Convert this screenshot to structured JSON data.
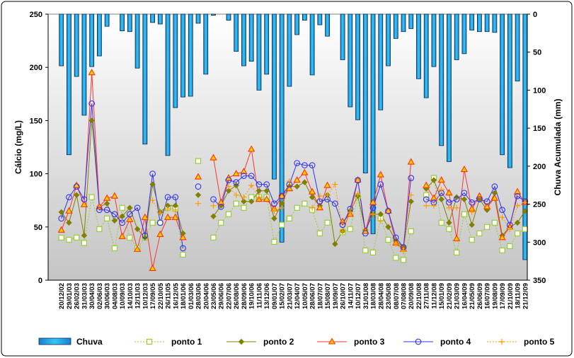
{
  "chart_data": {
    "type": "bar+line",
    "title": "",
    "ylabel": "Cálcio (mg/L)",
    "y2label": "Chuva Acumulada (mm)",
    "ylim": [
      0,
      250
    ],
    "y2lim": [
      350,
      0
    ],
    "yticks": [
      "0",
      "50",
      "100",
      "150",
      "200",
      "250"
    ],
    "y2ticks": [
      "0",
      "50",
      "100",
      "150",
      "200",
      "250",
      "300",
      "350"
    ],
    "legend_position": "bottom",
    "categories": [
      "20/12/02",
      "29/01/03",
      "26/02/03",
      "31/03/03",
      "30/04/03",
      "02/06/03",
      "30/06/03",
      "04/08/03",
      "10/09/03",
      "14/10/03",
      "12/11/03",
      "10/12/03",
      "17/09/05",
      "22/10/05",
      "26/11/05",
      "16/12/05",
      "18/01/06",
      "01/03/06",
      "28/03/06",
      "20/04/06",
      "23/05/06",
      "29/06/06",
      "22/07/06",
      "26/08/06",
      "28/09/06",
      "19/10/06",
      "11/11/06",
      "13/12/06",
      "09/01/07",
      "15/02/07",
      "21/03/07",
      "12/04/07",
      "10/05/07",
      "28/06/07",
      "18/07/07",
      "15/08/07",
      "19/09/07",
      "26/10/07",
      "14/11/07",
      "10/12/07",
      "31/01/08",
      "18/03/08",
      "28/04/08",
      "23/05/08",
      "08/07/08",
      "07/08/08",
      "20/09/08",
      "22/10/08",
      "27/11/08",
      "11/12/08",
      "15/01/09",
      "21/02/09",
      "21/03/09",
      "16/04/09",
      "21/05/09",
      "26/06/09",
      "16/07/09",
      "19/08/09",
      "17/09/09",
      "21/10/09",
      "18/11/09",
      "21/12/09"
    ],
    "rain": {
      "name": "Chuva",
      "axis": "right",
      "values": [
        68,
        185,
        82,
        133,
        69,
        55,
        16,
        0,
        22,
        23,
        71,
        171,
        11,
        13,
        186,
        123,
        109,
        108,
        12,
        79,
        1.5,
        0,
        8,
        49,
        68,
        62,
        100,
        79,
        217,
        300,
        95,
        27,
        8,
        80,
        14,
        29,
        0,
        60,
        122,
        139,
        209,
        289,
        126,
        68,
        32,
        23,
        19,
        85,
        110,
        69,
        173,
        194,
        60,
        52,
        21,
        23,
        23,
        24,
        185,
        202,
        88,
        323
      ]
    },
    "series": [
      {
        "name": "ponto 1",
        "color": "#99CC33",
        "marker": "square-open",
        "dash": true,
        "values": [
          40,
          38,
          40,
          35,
          78,
          48,
          58,
          30,
          68,
          40,
          30,
          40,
          54,
          54,
          68,
          67,
          24,
          null,
          112,
          null,
          40,
          54,
          62,
          72,
          68,
          78,
          78,
          78,
          36,
          52,
          58,
          68,
          72,
          66,
          44,
          54,
          null,
          45,
          48,
          79,
          28,
          26,
          58,
          38,
          21,
          19,
          46,
          null,
          80,
          96,
          54,
          48,
          26,
          62,
          38,
          44,
          50,
          54,
          28,
          32,
          44,
          48
        ]
      },
      {
        "name": "ponto 2",
        "color": "#808000",
        "marker": "diamond",
        "dash": false,
        "values": [
          64,
          54,
          80,
          42,
          150,
          69,
          72,
          56,
          60,
          68,
          48,
          40,
          90,
          64,
          70,
          70,
          44,
          null,
          80,
          null,
          60,
          70,
          84,
          89,
          74,
          74,
          84,
          84,
          58,
          72,
          88,
          88,
          92,
          78,
          70,
          80,
          34,
          46,
          65,
          79,
          47,
          62,
          62,
          50,
          37,
          31,
          74,
          null,
          86,
          94,
          76,
          54,
          78,
          76,
          52,
          76,
          66,
          82,
          42,
          50,
          54,
          65
        ]
      },
      {
        "name": "ponto 3",
        "color": "#FF3333",
        "marker": "triangle",
        "dash": false,
        "values": [
          47,
          65,
          89,
          71,
          195,
          69,
          77,
          79,
          41,
          57,
          29,
          59,
          11,
          43,
          59,
          59,
          40,
          null,
          97,
          null,
          115,
          73,
          96,
          100,
          102,
          123,
          76,
          76,
          67,
          79,
          86,
          94,
          101,
          83,
          68,
          89,
          null,
          55,
          62,
          94,
          46,
          73,
          99,
          65,
          35,
          29,
          111,
          null,
          89,
          77,
          94,
          82,
          39,
          104,
          67,
          79,
          69,
          77,
          40,
          50,
          83,
          73
        ]
      },
      {
        "name": "ponto 4",
        "color": "#3333EE",
        "marker": "circle-open",
        "dash": false,
        "values": [
          58,
          78,
          88,
          76,
          166,
          66,
          66,
          62,
          54,
          62,
          68,
          42,
          100,
          54,
          78,
          78,
          30,
          null,
          88,
          null,
          76,
          69,
          94,
          92,
          98,
          98,
          90,
          90,
          72,
          79,
          90,
          110,
          108,
          108,
          74,
          76,
          72,
          52,
          67,
          94,
          44,
          68,
          90,
          65,
          40,
          31,
          96,
          null,
          76,
          73,
          82,
          73,
          76,
          82,
          73,
          76,
          74,
          88,
          66,
          52,
          79,
          74
        ]
      },
      {
        "name": "ponto 5",
        "color": "#FF9900",
        "marker": "plus",
        "dash": true,
        "values": [
          null,
          null,
          null,
          null,
          null,
          null,
          null,
          null,
          null,
          null,
          null,
          null,
          75,
          63,
          67,
          66,
          null,
          null,
          72,
          null,
          70,
          null,
          88,
          80,
          78,
          89,
          78,
          null,
          65,
          68,
          93,
          null,
          null,
          68,
          79,
          80,
          90,
          46,
          64,
          81,
          null,
          62,
          56,
          null,
          34,
          27,
          80,
          null,
          70,
          70,
          85,
          68,
          68,
          null,
          64,
          null,
          null,
          null,
          59,
          48,
          70,
          73
        ]
      }
    ]
  }
}
